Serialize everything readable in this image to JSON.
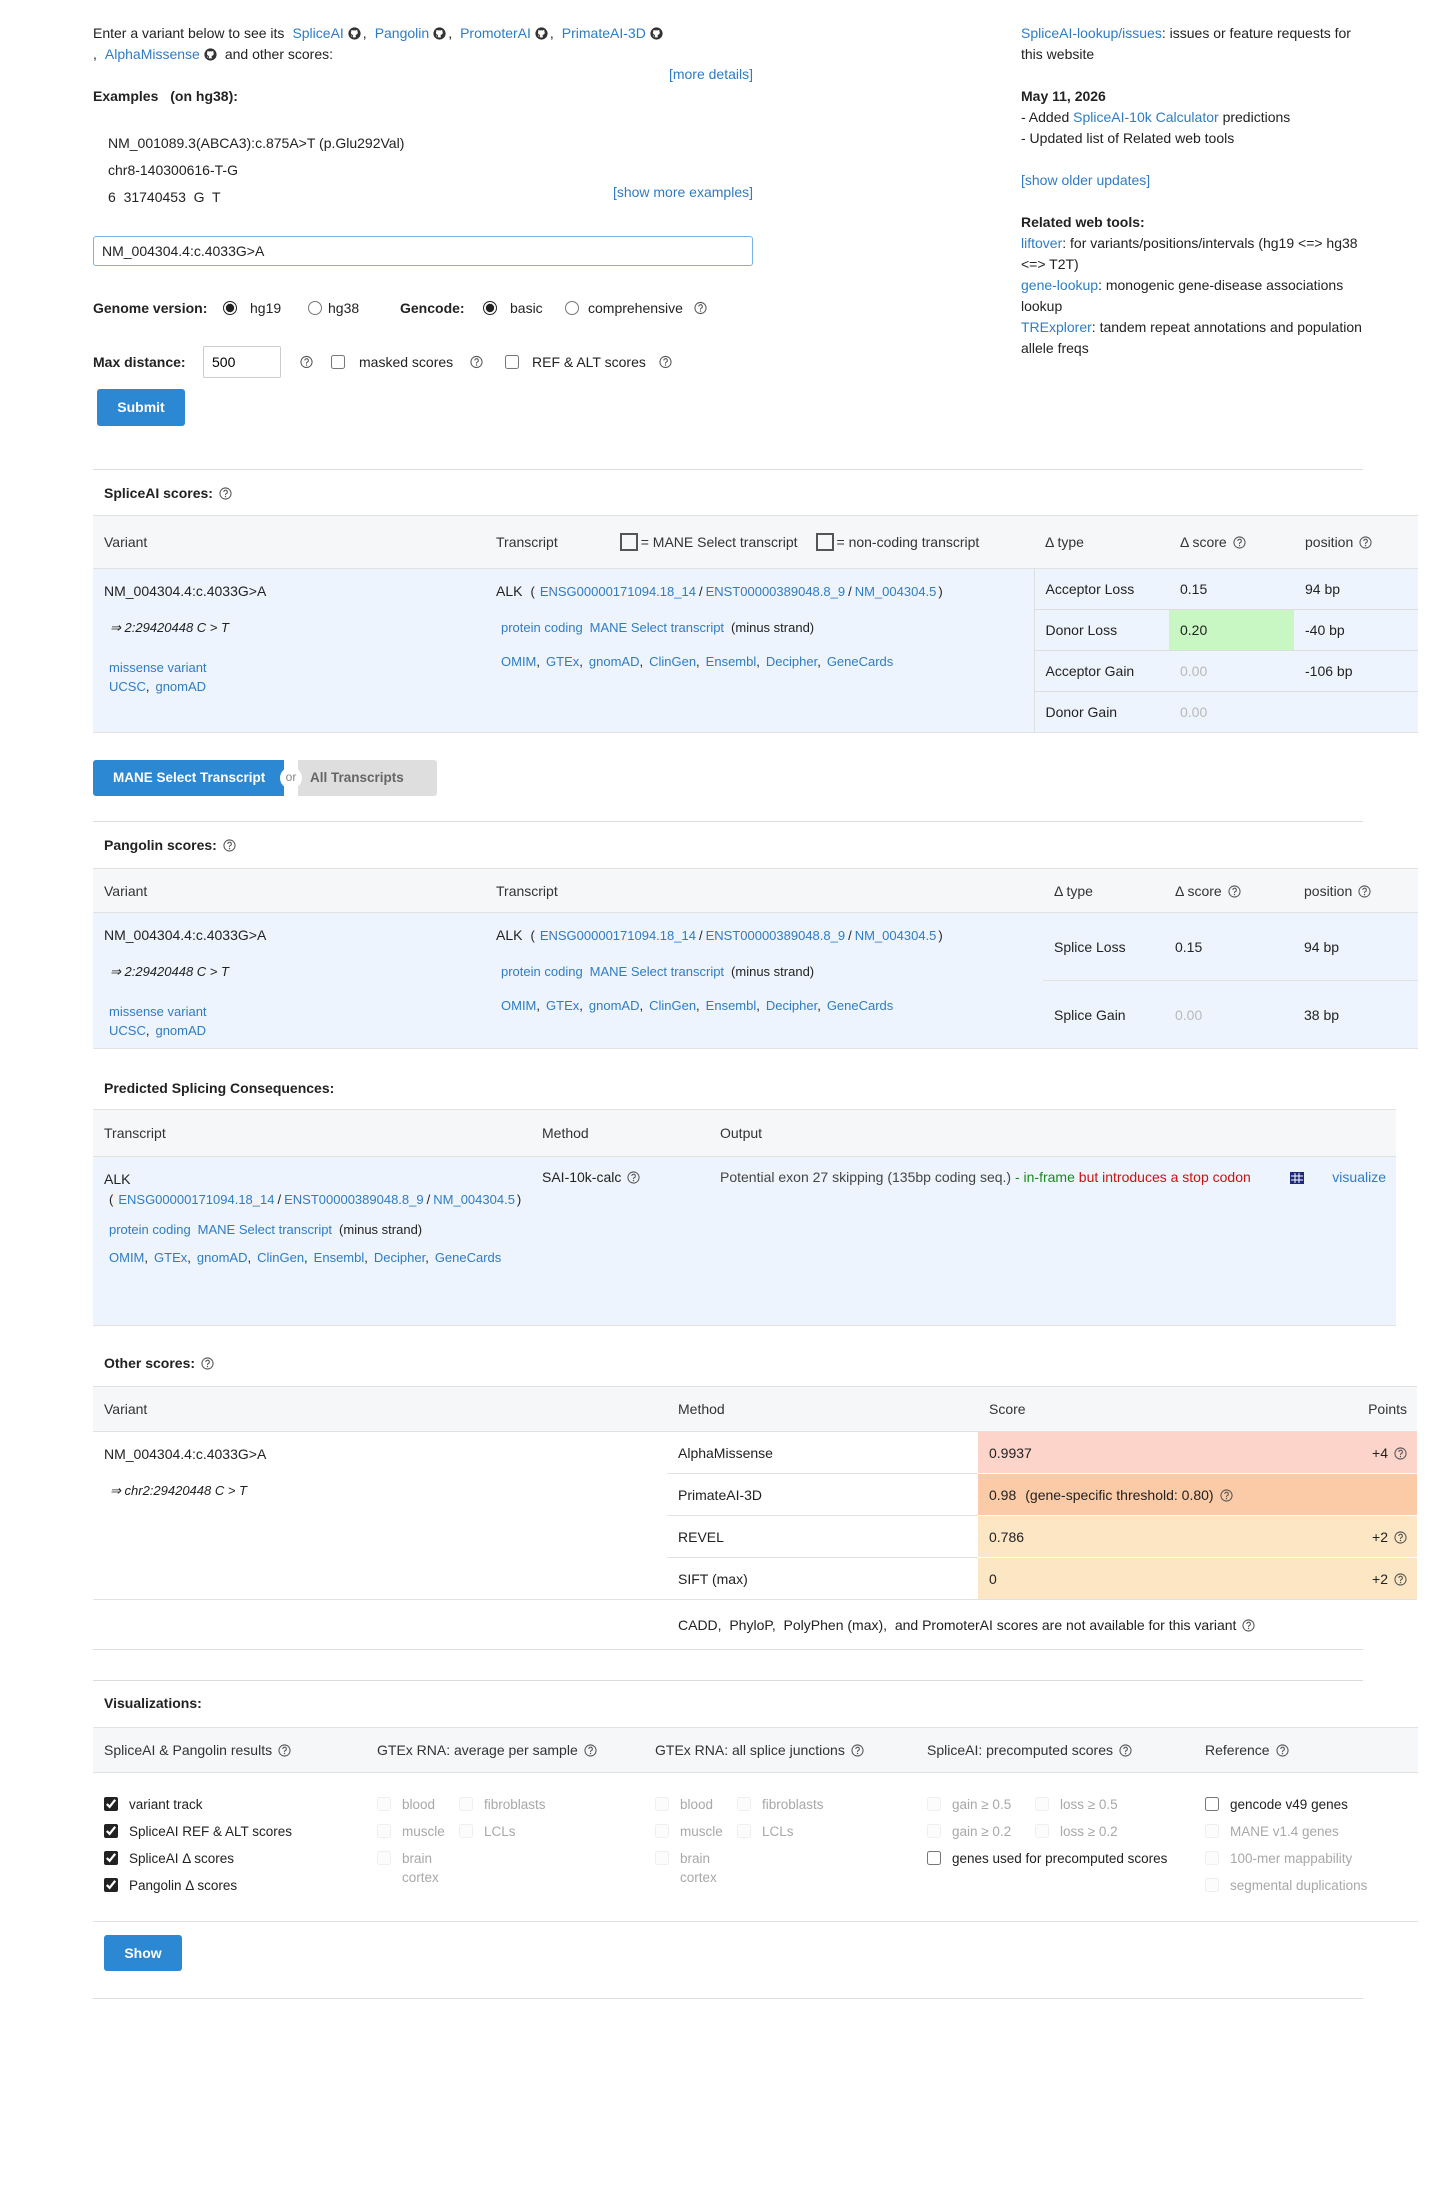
{
  "intro": {
    "lead": "Enter a variant below to see its",
    "tools": [
      "SpliceAI",
      "Pangolin",
      "PromoterAI",
      "PrimateAI-3D",
      "AlphaMissense"
    ],
    "separator": ",",
    "tail": "and other scores:",
    "more_details": "[more details]"
  },
  "examples": {
    "title": "Examples",
    "genome": "(on hg38):",
    "items": [
      "NM_001089.3(ABCA3):c.875A>T (p.Glu292Val)",
      "chr8-140300616-T-G",
      "6  31740453  G  T"
    ],
    "show_more": "[show more examples]"
  },
  "form": {
    "variant": "NM_004304.4:c.4033G>A",
    "genome_label": "Genome version:",
    "genome_options": [
      {
        "label": "hg19",
        "checked": true
      },
      {
        "label": "hg38",
        "checked": false
      }
    ],
    "gencode_label": "Gencode:",
    "gencode_options": [
      {
        "label": "basic",
        "checked": true
      },
      {
        "label": "comprehensive",
        "checked": false
      }
    ],
    "max_distance_label": "Max distance:",
    "max_distance": "500",
    "masked_scores": {
      "label": "masked scores",
      "checked": false
    },
    "ref_alt_scores": {
      "label": "REF & ALT scores",
      "checked": false
    },
    "submit": "Submit"
  },
  "sidebar": {
    "issues_link": "SpliceAI-lookup/issues",
    "issues_text": ": issues or feature requests for this website",
    "update_date": "May 11, 2026",
    "update_1": {
      "prefix": "- Added",
      "link": "SpliceAI-10k Calculator",
      "suffix": "predictions"
    },
    "update_2": "- Updated list of Related web tools",
    "older_updates": "[show older updates]",
    "related_title": "Related web tools:",
    "related": [
      {
        "link": "liftover",
        "text": ": for variants/positions/intervals (hg19 <=> hg38 <=> T2T)"
      },
      {
        "link": "gene-lookup",
        "text": ": monogenic gene-disease associations lookup"
      },
      {
        "link": "TRExplorer",
        "text": ": tandem repeat annotations and population allele freqs"
      }
    ]
  },
  "spliceai": {
    "title": "SpliceAI scores:",
    "headers": {
      "variant": "Variant",
      "transcript": "Transcript",
      "mane_legend": "= MANE Select transcript",
      "noncoding_legend": "= non-coding transcript",
      "type": "Δ type",
      "score": "Δ score",
      "position": "position"
    },
    "variant": {
      "name": "NM_004304.4:c.4033G>A",
      "coords": "⇒ 2:29420448 C > T",
      "consequence": "missense variant",
      "links": [
        "UCSC",
        "gnomAD"
      ],
      "link_sep": ","
    },
    "transcript": {
      "gene": "ALK",
      "open": "(",
      "ids": [
        "ENSG00000171094.18_14",
        "ENST00000389048.8_9",
        "NM_004304.5"
      ],
      "id_sep": "/",
      "close": ")",
      "biotype": "protein coding",
      "mane": "MANE Select transcript",
      "strand": "(minus strand)",
      "links": [
        "OMIM",
        "GTEx",
        "gnomAD",
        "ClinGen",
        "Ensembl",
        "Decipher",
        "GeneCards"
      ],
      "link_sep": ","
    },
    "rows": [
      {
        "type": "Acceptor Loss",
        "score": "0.15",
        "position": "94 bp"
      },
      {
        "type": "Donor Loss",
        "score": "0.20",
        "position": "-40 bp",
        "color": "#c9f7c4"
      },
      {
        "type": "Acceptor Gain",
        "score": "0.00",
        "position": "-106 bp"
      },
      {
        "type": "Donor Gain",
        "score": "0.00"
      }
    ]
  },
  "toggle": {
    "mane": "MANE Select Transcript",
    "or": "or",
    "all": "All Transcripts"
  },
  "pangolin": {
    "title": "Pangolin scores:",
    "headers": {
      "variant": "Variant",
      "transcript": "Transcript",
      "type": "Δ type",
      "score": "Δ score",
      "position": "position"
    },
    "variant": {
      "name": "NM_004304.4:c.4033G>A",
      "coords": "⇒ 2:29420448 C > T",
      "consequence": "missense variant",
      "links": [
        "UCSC",
        "gnomAD"
      ],
      "link_sep": ","
    },
    "transcript": {
      "gene": "ALK",
      "open": "(",
      "ids": [
        "ENSG00000171094.18_14",
        "ENST00000389048.8_9",
        "NM_004304.5"
      ],
      "id_sep": "/",
      "close": ")",
      "biotype": "protein coding",
      "mane": "MANE Select transcript",
      "strand": "(minus strand)",
      "links": [
        "OMIM",
        "GTEx",
        "gnomAD",
        "ClinGen",
        "Ensembl",
        "Decipher",
        "GeneCards"
      ],
      "link_sep": ","
    },
    "rows": [
      {
        "type": "Splice Loss",
        "score": "0.15",
        "position": "94 bp"
      },
      {
        "type": "Splice Gain",
        "score": "0.00",
        "position": "38 bp"
      }
    ]
  },
  "consequences": {
    "title": "Predicted Splicing Consequences:",
    "headers": {
      "transcript": "Transcript",
      "method": "Method",
      "output": "Output"
    },
    "transcript": {
      "gene": "ALK",
      "open": "(",
      "ids": [
        "ENSG00000171094.18_14",
        "ENST00000389048.8_9",
        "NM_004304.5"
      ],
      "id_sep": "/",
      "close": ")",
      "biotype": "protein coding",
      "mane": "MANE Select transcript",
      "strand": "(minus strand)",
      "links": [
        "OMIM",
        "GTEx",
        "gnomAD",
        "ClinGen",
        "Ensembl",
        "Decipher",
        "GeneCards"
      ],
      "link_sep": ","
    },
    "method": "SAI-10k-calc",
    "output": {
      "text": "Potential exon 27 skipping (135bp coding seq.)",
      "frame": "- in-frame",
      "effect": "but introduces a stop codon",
      "visualize": "visualize"
    }
  },
  "other_scores": {
    "title": "Other scores:",
    "headers": {
      "variant": "Variant",
      "method": "Method",
      "score": "Score",
      "points": "Points"
    },
    "variant": {
      "name": "NM_004304.4:c.4033G>A",
      "coords": "⇒ chr2:29420448 C > T"
    },
    "rows": [
      {
        "method": "AlphaMissense",
        "score": "0.9937",
        "points": "+4",
        "color": "#fcd4ca"
      },
      {
        "method": "PrimateAI-3D",
        "score": "0.98",
        "threshold": "(gene-specific threshold: 0.80)",
        "color": "#fbcaa6"
      },
      {
        "method": "REVEL",
        "score": "0.786",
        "points": "+2",
        "color": "#fde6c3"
      },
      {
        "method": "SIFT (max)",
        "score": "0",
        "points": "+2",
        "color": "#fde6c3"
      }
    ],
    "unavailable": "CADD,  PhyloP,  PolyPhen (max),  and PromoterAI scores are not available for this variant"
  },
  "visualizations": {
    "title": "Visualizations:",
    "columns": [
      {
        "title": "SpliceAI & Pangolin results",
        "options": [
          {
            "label": "variant track",
            "checked": true
          },
          {
            "label": "SpliceAI REF & ALT scores",
            "checked": true
          },
          {
            "label": "SpliceAI Δ scores",
            "checked": true
          },
          {
            "label": "Pangolin Δ scores",
            "checked": true
          }
        ]
      },
      {
        "title": "GTEx RNA: average per sample",
        "options": [
          {
            "label": "blood",
            "checked": false,
            "disabled": true
          },
          {
            "label": "fibroblasts",
            "checked": false,
            "disabled": true
          },
          {
            "label": "muscle",
            "checked": false,
            "disabled": true
          },
          {
            "label": "LCLs",
            "checked": false,
            "disabled": true
          },
          {
            "label": "brain cortex",
            "checked": false,
            "disabled": true
          }
        ]
      },
      {
        "title": "GTEx RNA: all splice junctions",
        "options": [
          {
            "label": "blood",
            "checked": false,
            "disabled": true
          },
          {
            "label": "fibroblasts",
            "checked": false,
            "disabled": true
          },
          {
            "label": "muscle",
            "checked": false,
            "disabled": true
          },
          {
            "label": "LCLs",
            "checked": false,
            "disabled": true
          },
          {
            "label": "brain cortex",
            "checked": false,
            "disabled": true
          }
        ]
      },
      {
        "title": "SpliceAI: precomputed scores",
        "options": [
          {
            "label": "gain ≥ 0.5",
            "checked": false,
            "disabled": true
          },
          {
            "label": "loss ≥ 0.5",
            "checked": false,
            "disabled": true
          },
          {
            "label": "gain ≥ 0.2",
            "checked": false,
            "disabled": true
          },
          {
            "label": "loss ≥ 0.2",
            "checked": false,
            "disabled": true
          },
          {
            "label": "genes used for precomputed scores",
            "checked": false
          }
        ]
      },
      {
        "title": "Reference",
        "options": [
          {
            "label": "gencode v49 genes",
            "checked": false
          },
          {
            "label": "MANE v1.4 genes",
            "checked": false,
            "disabled": true
          },
          {
            "label": "100-mer mappability",
            "checked": false,
            "disabled": true
          },
          {
            "label": "segmental duplications",
            "checked": false,
            "disabled": true
          }
        ]
      }
    ],
    "show": "Show"
  }
}
